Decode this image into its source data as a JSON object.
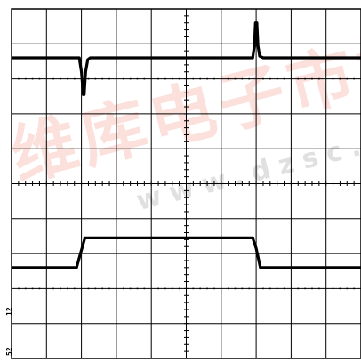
{
  "watermark": {
    "cn": "维库电子市场",
    "url": "www.dzsc.com"
  },
  "channel_labels": [
    "12",
    "52"
  ],
  "chart_data": {
    "type": "line",
    "title": "",
    "xlabel": "",
    "ylabel": "",
    "grid": true,
    "divisions": {
      "x": 10,
      "y": 10
    },
    "xlim": [
      0,
      10
    ],
    "ylim": [
      0,
      10
    ],
    "series": [
      {
        "x": [
          0,
          1.94,
          2.0,
          2.05,
          2.08,
          2.12,
          2.18,
          2.25,
          6.9,
          6.95,
          6.98,
          7.02,
          7.05,
          7.1,
          7.2,
          10
        ],
        "y": [
          8.6,
          8.6,
          8.2,
          7.55,
          7.55,
          8.2,
          8.55,
          8.6,
          8.6,
          8.95,
          9.6,
          9.6,
          8.95,
          8.65,
          8.6,
          8.6
        ],
        "color": "#000000"
      },
      {
        "x": [
          0,
          1.86,
          2.0,
          2.1,
          6.9,
          7.0,
          7.12,
          10
        ],
        "y": [
          2.6,
          2.6,
          3.1,
          3.45,
          3.45,
          3.15,
          2.6,
          2.6
        ],
        "color": "#000000"
      }
    ]
  }
}
